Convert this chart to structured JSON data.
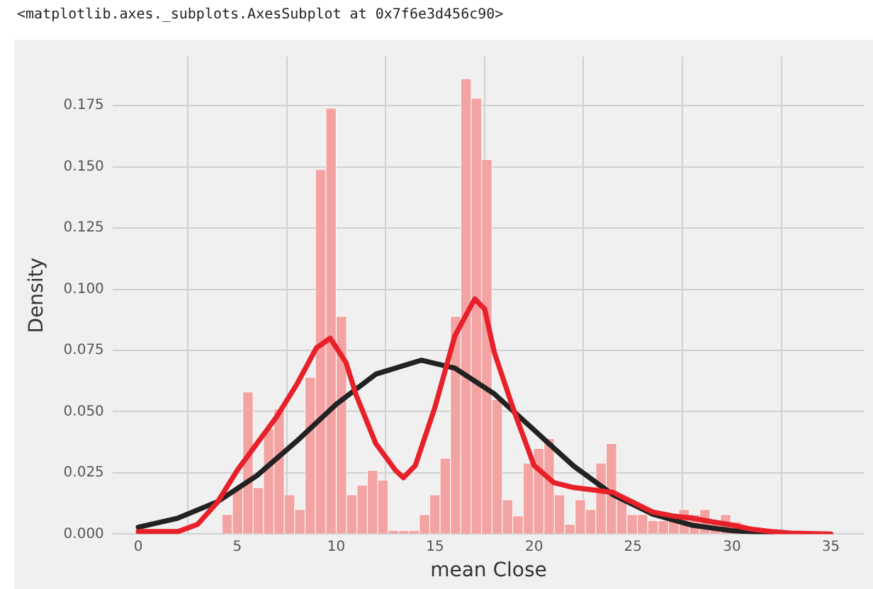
{
  "chart_data": {
    "type": "histogram",
    "annotations": [
      "<matplotlib.axes._subplots.AxesSubplot at 0x7f6e3d456c90>"
    ],
    "xlabel": "mean Close",
    "ylabel": "Density",
    "bins": [
      4.23,
      4.755,
      5.28,
      5.804,
      6.329,
      6.854,
      7.379,
      7.904,
      8.428,
      8.953,
      9.478,
      10.003,
      10.528,
      11.052,
      11.577,
      12.102,
      12.627,
      13.152,
      13.676,
      14.201,
      14.726,
      15.251,
      15.776,
      16.3,
      16.825,
      17.35,
      17.875,
      18.4,
      18.924,
      19.449,
      19.974,
      20.499,
      21.024,
      21.548,
      22.073,
      22.598,
      23.123,
      23.648,
      24.172,
      24.697,
      25.222,
      25.747,
      26.272,
      26.796,
      27.321,
      27.846,
      28.371,
      28.896,
      29.42,
      29.945,
      30.47
    ],
    "values": [
      0.008,
      0.019,
      0.058,
      0.019,
      0.043,
      0.051,
      0.016,
      0.01,
      0.064,
      0.149,
      0.174,
      0.089,
      0.016,
      0.02,
      0.026,
      0.022,
      0.0015,
      0.0015,
      0.0015,
      0.008,
      0.016,
      0.031,
      0.089,
      0.186,
      0.178,
      0.153,
      0.055,
      0.014,
      0.0074,
      0.029,
      0.035,
      0.039,
      0.016,
      0.004,
      0.014,
      0.01,
      0.029,
      0.037,
      0.014,
      0.008,
      0.008,
      0.0055,
      0.0055,
      0.008,
      0.01,
      0.008,
      0.01,
      0.0055,
      0.008,
      0.005
    ],
    "color": "#f4a3a3",
    "series": [
      {
        "type": "line",
        "color": "#e8202a",
        "x": [
          0,
          2,
          3,
          4,
          5,
          6,
          7,
          8,
          9,
          9.7,
          10.5,
          11,
          12,
          13,
          13.4,
          14,
          15,
          16,
          17,
          17.5,
          18,
          19,
          20,
          21,
          22,
          23,
          24,
          25,
          26,
          27,
          28,
          29,
          30,
          31,
          32,
          33,
          35
        ],
        "values": [
          0.001,
          0.001,
          0.004,
          0.013,
          0.026,
          0.037,
          0.048,
          0.061,
          0.076,
          0.08,
          0.07,
          0.057,
          0.037,
          0.026,
          0.023,
          0.028,
          0.052,
          0.081,
          0.096,
          0.092,
          0.074,
          0.05,
          0.028,
          0.021,
          0.019,
          0.018,
          0.017,
          0.013,
          0.009,
          0.0074,
          0.0065,
          0.005,
          0.0037,
          0.002,
          0.001,
          0.0004,
          0
        ]
      },
      {
        "type": "line",
        "color": "#222222",
        "x": [
          0,
          2,
          4,
          6,
          8,
          10,
          12,
          14.3,
          16,
          18,
          20,
          22,
          24,
          26,
          28,
          30,
          32
        ],
        "values": [
          0.0028,
          0.0065,
          0.0132,
          0.0239,
          0.0379,
          0.053,
          0.0653,
          0.071,
          0.0678,
          0.0572,
          0.0425,
          0.0278,
          0.016,
          0.0081,
          0.0036,
          0.0014,
          0.0005
        ]
      }
    ],
    "xlim": [
      -1.3,
      36.7
    ],
    "xticks": [
      0,
      5,
      10,
      15,
      20,
      25,
      30,
      35
    ],
    "ylim": [
      0,
      0.195
    ],
    "yticks": [
      {
        "value": 0,
        "label": "0.000"
      },
      {
        "value": 0.025,
        "label": "0.025"
      },
      {
        "value": 0.05,
        "label": "0.050"
      },
      {
        "value": 0.075,
        "label": "0.075"
      },
      {
        "value": 0.1,
        "label": "0.100"
      },
      {
        "value": 0.125,
        "label": "0.125"
      },
      {
        "value": 0.15,
        "label": "0.150"
      },
      {
        "value": 0.175,
        "label": "0.175"
      }
    ],
    "grid": true,
    "legend": false
  }
}
